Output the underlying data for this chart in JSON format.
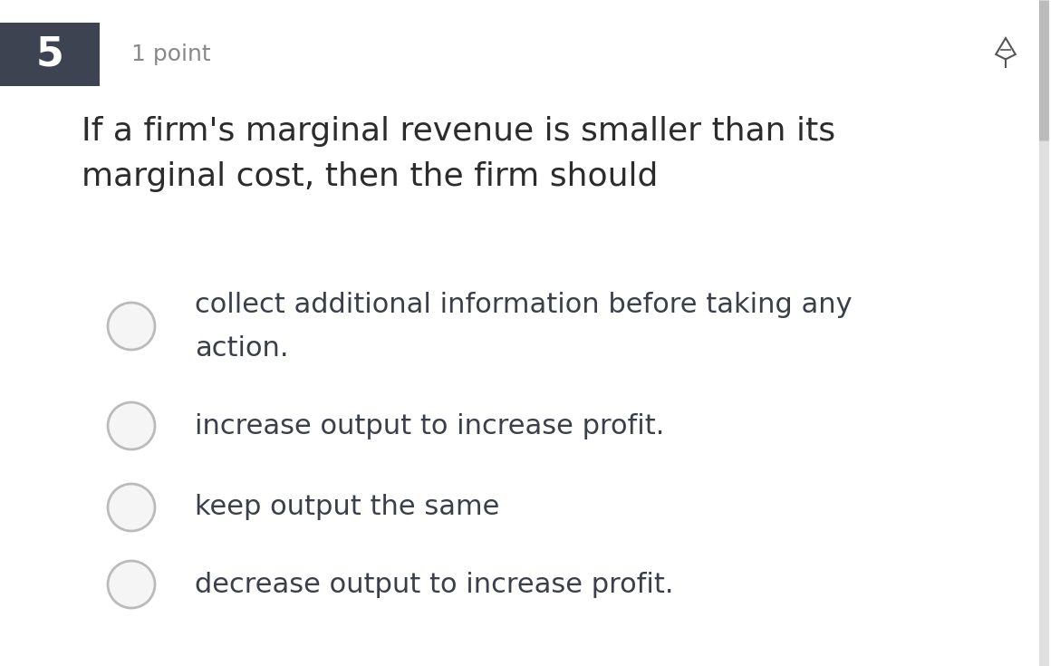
{
  "question_number": "5",
  "points": "1 point",
  "question_text_line1": "If a firm's marginal revenue is smaller than its",
  "question_text_line2": "marginal cost, then the firm should",
  "options": [
    [
      "collect additional information before taking any",
      "action."
    ],
    [
      "increase output to increase profit."
    ],
    [
      "keep output the same"
    ],
    [
      "decrease output to increase profit."
    ]
  ],
  "bg_color": "#ffffff",
  "header_bg": "#3d4350",
  "number_color": "#ffffff",
  "points_color": "#888888",
  "question_text_color": "#2c2c2c",
  "option_text_color": "#3a3f4a",
  "circle_edge_color": "#bbbbbb",
  "circle_face_color": "#f5f5f5",
  "scrollbar_color": "#bbbbbb"
}
